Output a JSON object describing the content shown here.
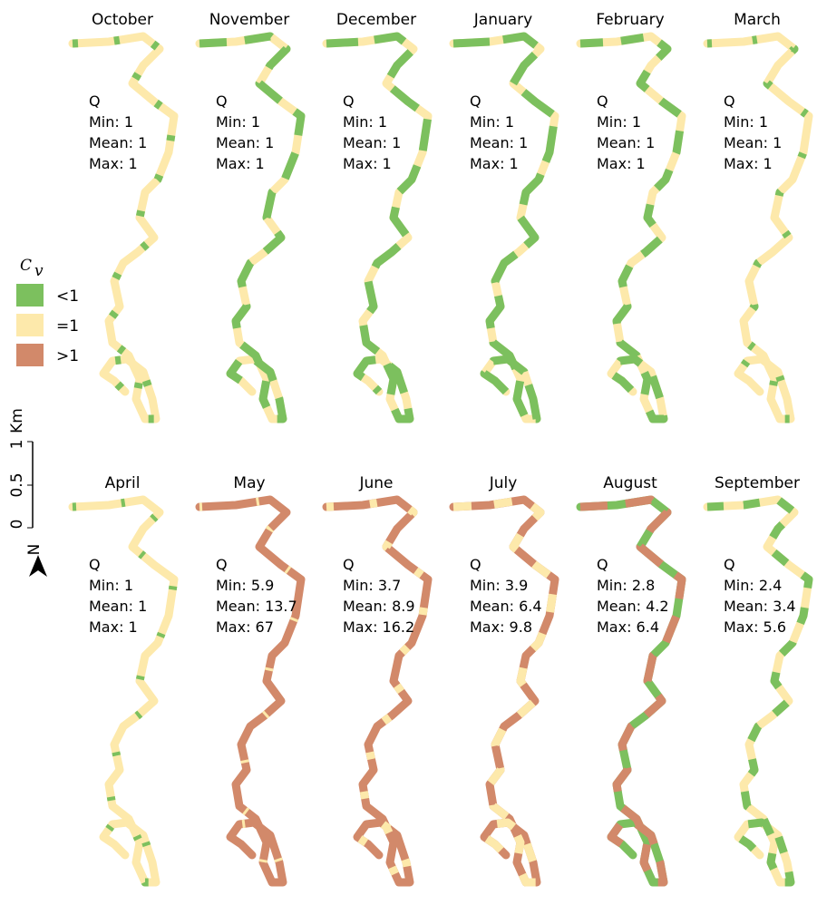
{
  "legend": {
    "symbol": "C",
    "subscript": "v",
    "items": [
      {
        "label": "<1",
        "color": "#7cc05e"
      },
      {
        "label": "=1",
        "color": "#fde9ab"
      },
      {
        "label": ">1",
        "color": "#d2896a"
      }
    ]
  },
  "scale": {
    "unit": "Km",
    "labels": [
      "1",
      "0.5",
      "0"
    ]
  },
  "north": "N",
  "panels": [
    {
      "month": "October",
      "q": "Q",
      "min": "Min: 1",
      "mean": "Mean: 1",
      "max": "Max: 1"
    },
    {
      "month": "November",
      "q": "Q",
      "min": "Min: 1",
      "mean": "Mean: 1",
      "max": "Max: 1"
    },
    {
      "month": "December",
      "q": "Q",
      "min": "Min: 1",
      "mean": "Mean: 1",
      "max": "Max: 1"
    },
    {
      "month": "January",
      "q": "Q",
      "min": "Min: 1",
      "mean": "Mean: 1",
      "max": "Max: 1"
    },
    {
      "month": "February",
      "q": "Q",
      "min": "Min: 1",
      "mean": "Mean: 1",
      "max": "Max: 1"
    },
    {
      "month": "March",
      "q": "Q",
      "min": "Min: 1",
      "mean": "Mean: 1",
      "max": "Max: 1"
    },
    {
      "month": "April",
      "q": "Q",
      "min": "Min: 1",
      "mean": "Mean: 1",
      "max": "Max: 1"
    },
    {
      "month": "May",
      "q": "Q",
      "min": "Min: 5.9",
      "mean": "Mean: 13.7",
      "max": "Max: 67"
    },
    {
      "month": "June",
      "q": "Q",
      "min": "Min: 3.7",
      "mean": "Mean: 8.9",
      "max": "Max: 16.2"
    },
    {
      "month": "July",
      "q": "Q",
      "min": "Min: 3.9",
      "mean": "Mean: 6.4",
      "max": "Max: 9.8"
    },
    {
      "month": "August",
      "q": "Q",
      "min": "Min: 2.8",
      "mean": "Mean: 4.2",
      "max": "Max: 6.4"
    },
    {
      "month": "September",
      "q": "Q",
      "min": "Min: 2.4",
      "mean": "Mean: 3.4",
      "max": "Max: 5.6"
    }
  ]
}
